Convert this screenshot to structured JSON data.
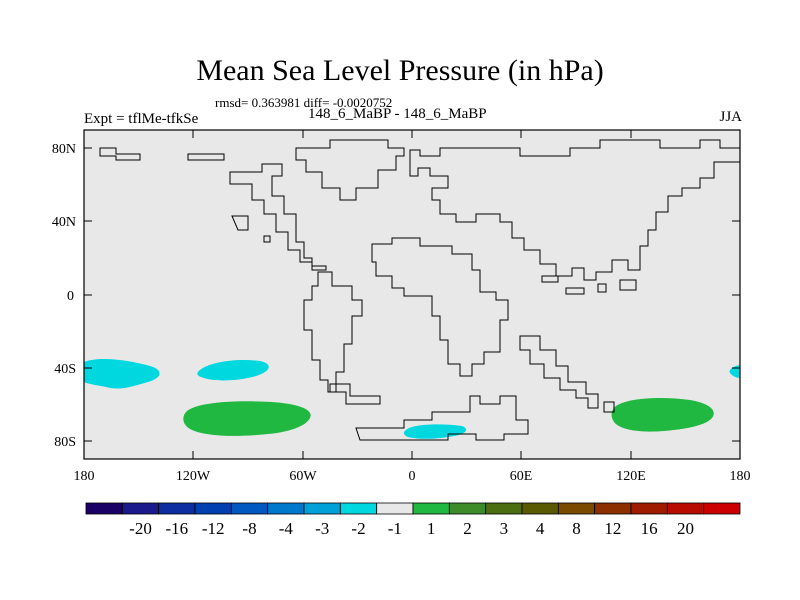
{
  "title": "Mean Sea Level Pressure (in hPa)",
  "stats": "rmsd= 0.363981 diff= -0.0020752",
  "experiment": "Expt = tflMe-tfkSe",
  "runs": "148_6_MaBP - 148_6_MaBP",
  "season": "JJA",
  "colors": {
    "land_background": "#e8e8e8",
    "coastline": "#000000",
    "cyan_anomaly": "#00d8e0",
    "green_anomaly": "#20b840"
  },
  "axes": {
    "lat_ticks": [
      "80N",
      "40N",
      "0",
      "40S",
      "80S"
    ],
    "lon_ticks": [
      "180",
      "120W",
      "60W",
      "0",
      "60E",
      "120E",
      "180"
    ]
  },
  "anomaly_regions": [
    {
      "name": "south-pacific-west",
      "level": "-2 to -1",
      "center_lon": -158,
      "center_lat": -43
    },
    {
      "name": "south-pacific-east",
      "level": "-2 to -1",
      "center_lon": -96,
      "center_lat": -41
    },
    {
      "name": "antarctic-atlantic",
      "level": "-2 to -1",
      "center_lon": 15,
      "center_lat": -75
    },
    {
      "name": "far-east-edge",
      "level": "-2 to -1",
      "center_lon": 178,
      "center_lat": -41
    },
    {
      "name": "southern-ocean-pacific",
      "level": "1 to 2",
      "center_lon": -102,
      "center_lat": -67
    },
    {
      "name": "southern-ocean-indian",
      "level": "1 to 2",
      "center_lon": 135,
      "center_lat": -64
    }
  ],
  "colorbar": {
    "colors": [
      "#1a0066",
      "#1a1a8c",
      "#0d2ea0",
      "#0040b0",
      "#0058c0",
      "#0078cc",
      "#00a0d8",
      "#00d8e0",
      "#e8e8e8",
      "#20b840",
      "#3c8c2a",
      "#4a6e10",
      "#5a5a00",
      "#7a4a00",
      "#8c3000",
      "#a01c00",
      "#b80c00",
      "#cc0000"
    ],
    "labels": [
      "-20",
      "-16",
      "-12",
      "-8",
      "-4",
      "-3",
      "-2",
      "-1",
      "1",
      "2",
      "3",
      "4",
      "8",
      "12",
      "16",
      "20"
    ]
  }
}
